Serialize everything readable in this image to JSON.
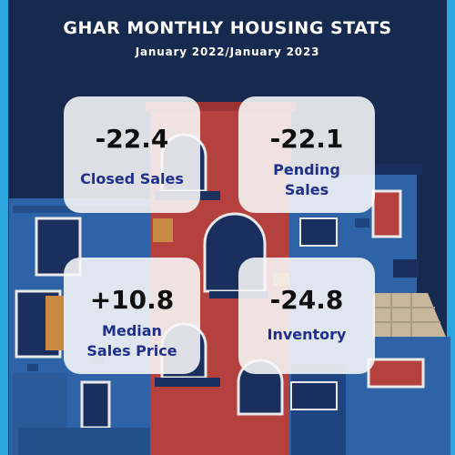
{
  "header": {
    "title": "GHAR MONTHLY HOUSING STATS",
    "subtitle": "January 2022/January 2023"
  },
  "stats": [
    {
      "value": "-22.4",
      "label": "Closed Sales"
    },
    {
      "value": "-22.1",
      "label_line1": "Pending",
      "label_line2": "Sales"
    },
    {
      "value": "+10.8",
      "label_line1": "Median",
      "label_line2": "Sales Price"
    },
    {
      "value": "-24.8",
      "label": "Inventory"
    }
  ],
  "colors": {
    "background": "#16294f",
    "border_accent": "#2aa6dd",
    "label_text": "#1f2f8a",
    "brick_red": "#b5413f",
    "house_blue": "#2f63a8"
  }
}
